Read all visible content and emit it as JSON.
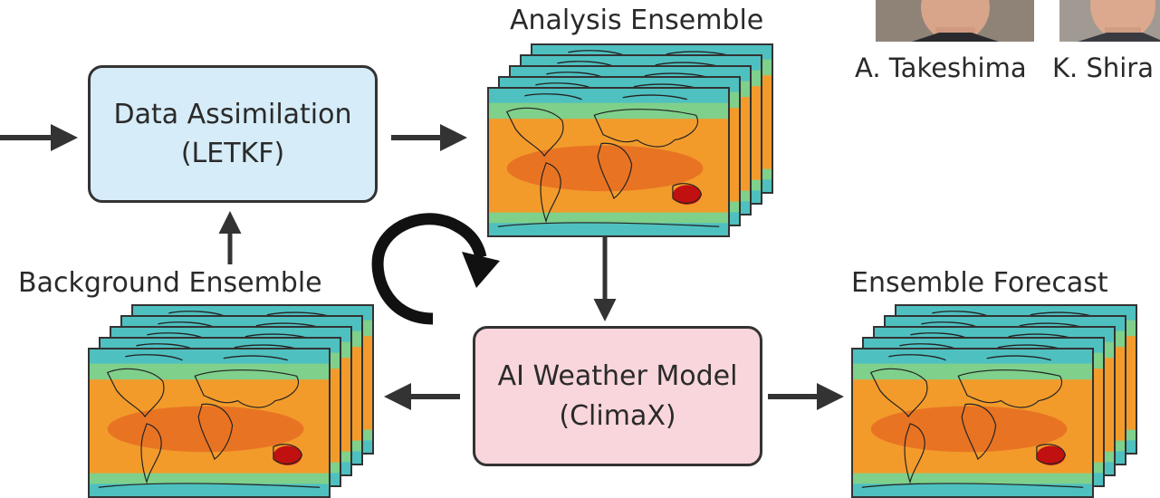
{
  "labels": {
    "analysis_ensemble": "Analysis Ensemble",
    "background_ensemble": "Background Ensemble",
    "ensemble_forecast": "Ensemble Forecast"
  },
  "boxes": {
    "data_assimilation": {
      "line1": "Data Assimilation",
      "line2": "(LETKF)",
      "fill": "#d6ecf8"
    },
    "ai_weather_model": {
      "line1": "AI Weather Model",
      "line2": "(ClimaX)",
      "fill": "#f8d6dc"
    }
  },
  "authors": {
    "first": "A. Takeshima",
    "second": "K. Shira"
  },
  "map_colors": {
    "warm": "#f29b2b",
    "hot": "#e0531e",
    "cool": "#7fd08a",
    "cold": "#4fc0c0",
    "extreme": "#c01010"
  }
}
